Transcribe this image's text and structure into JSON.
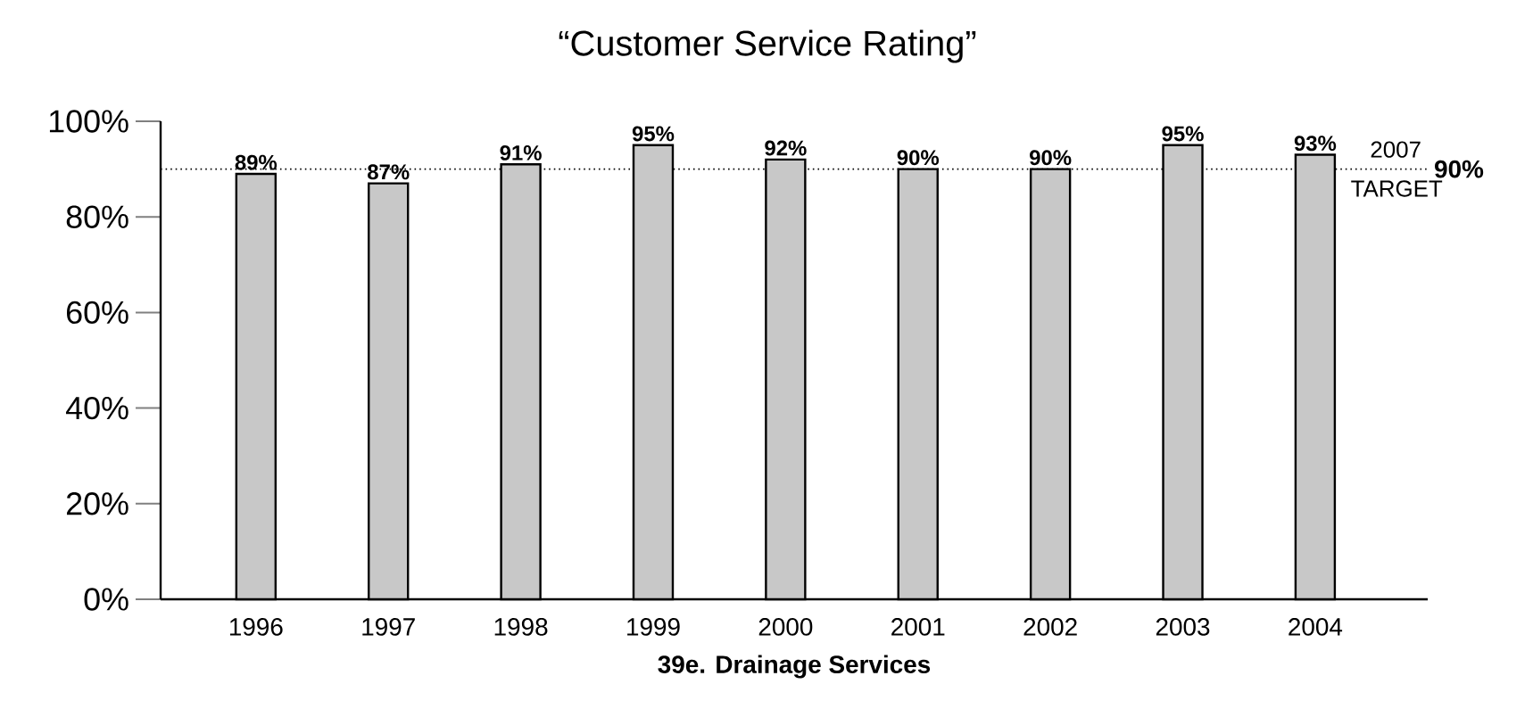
{
  "chart_data": {
    "type": "bar",
    "title": "“Customer Service Rating”",
    "xlabel": "39e. Drainage Services",
    "categories": [
      "1996",
      "1997",
      "1998",
      "1999",
      "2000",
      "2001",
      "2002",
      "2003",
      "2004"
    ],
    "values": [
      89,
      87,
      91,
      95,
      92,
      90,
      90,
      95,
      93
    ],
    "value_labels": [
      "89%",
      "87%",
      "91%",
      "95%",
      "92%",
      "90%",
      "90%",
      "95%",
      "93%"
    ],
    "color": "#c8c8c8",
    "ylim": [
      0,
      100
    ],
    "yticks": [
      {
        "value": 0,
        "label": "0%"
      },
      {
        "value": 20,
        "label": "20%"
      },
      {
        "value": 40,
        "label": "40%"
      },
      {
        "value": 60,
        "label": "60%"
      },
      {
        "value": 80,
        "label": "80%"
      },
      {
        "value": 100,
        "label": "100%"
      }
    ],
    "ref_lines": [
      {
        "axis": "y",
        "value": 90,
        "label": "2007 TARGET",
        "line_style": "dotted"
      }
    ],
    "annotations": [
      "90%"
    ]
  }
}
